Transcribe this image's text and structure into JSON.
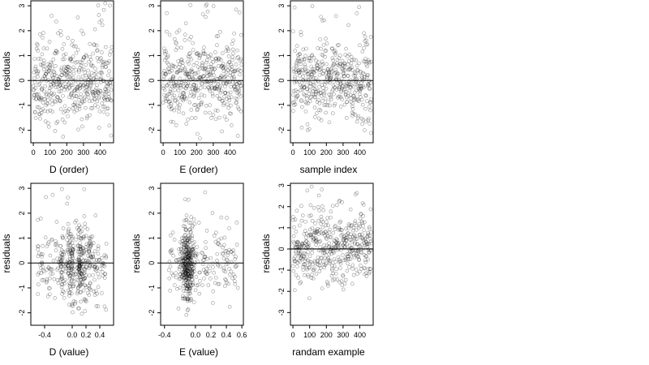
{
  "chart_data": [
    {
      "type": "scatter",
      "xlabel": "D (order)",
      "ylabel": "residuals",
      "xlim": [
        -15,
        480
      ],
      "ylim": [
        -2.5,
        3.2
      ],
      "xticks": [
        0,
        100,
        200,
        300,
        400
      ],
      "xtick_labels": [
        "0",
        "100",
        "200",
        "300",
        "400"
      ],
      "yticks": [
        -2,
        -1,
        0,
        1,
        2,
        3
      ],
      "ytick_labels": [
        "-2",
        "-1",
        "0",
        "1",
        "2",
        "3"
      ],
      "hline": 0,
      "x_dist": "index",
      "n": 470,
      "seed": 11
    },
    {
      "type": "scatter",
      "xlabel": "E (order)",
      "ylabel": "residuals",
      "xlim": [
        -15,
        480
      ],
      "ylim": [
        -2.5,
        3.2
      ],
      "xticks": [
        0,
        100,
        200,
        300,
        400
      ],
      "xtick_labels": [
        "0",
        "100",
        "200",
        "300",
        "400"
      ],
      "yticks": [
        -2,
        -1,
        0,
        1,
        2,
        3
      ],
      "ytick_labels": [
        "-2",
        "-1",
        "0",
        "1",
        "2",
        "3"
      ],
      "hline": 0,
      "x_dist": "index",
      "n": 470,
      "seed": 23
    },
    {
      "type": "scatter",
      "xlabel": "sample index",
      "ylabel": "residuals",
      "xlim": [
        -15,
        480
      ],
      "ylim": [
        -2.5,
        3.2
      ],
      "xticks": [
        0,
        100,
        200,
        300,
        400
      ],
      "xtick_labels": [
        "0",
        "100",
        "200",
        "300",
        "400"
      ],
      "yticks": [
        -2,
        -1,
        0,
        1,
        2,
        3
      ],
      "ytick_labels": [
        "-2",
        "-1",
        "0",
        "1",
        "2",
        "3"
      ],
      "hline": 0,
      "x_dist": "index",
      "n": 470,
      "seed": 37
    },
    {
      "type": "scatter",
      "xlabel": "D (value)",
      "ylabel": "residuals",
      "xlim": [
        -0.6,
        0.6
      ],
      "ylim": [
        -2.5,
        3.2
      ],
      "xticks": [
        -0.4,
        0,
        0.2,
        0.4
      ],
      "xtick_labels": [
        "-0.4",
        "0.0",
        "0.2",
        "0.4"
      ],
      "yticks": [
        -2,
        -1,
        0,
        1,
        2,
        3
      ],
      "ytick_labels": [
        "-2",
        "-1",
        "0",
        "1",
        "2",
        "3"
      ],
      "hline": 0,
      "x_dist": "D_value",
      "n": 470,
      "seed": 41
    },
    {
      "type": "scatter",
      "xlabel": "E (value)",
      "ylabel": "residuals",
      "xlim": [
        -0.45,
        0.62
      ],
      "ylim": [
        -2.5,
        3.2
      ],
      "xticks": [
        -0.4,
        0,
        0.2,
        0.4,
        0.6
      ],
      "xtick_labels": [
        "-0.4",
        "0.0",
        "0.2",
        "0.4",
        "0.6"
      ],
      "yticks": [
        -2,
        -1,
        0,
        1,
        2,
        3
      ],
      "ytick_labels": [
        "-2",
        "-1",
        "0",
        "1",
        "2",
        "3"
      ],
      "hline": 0,
      "x_dist": "E_value",
      "n": 470,
      "seed": 53
    },
    {
      "type": "scatter",
      "xlabel": "randam example",
      "ylabel": "residuals",
      "xlim": [
        -15,
        480
      ],
      "ylim": [
        -3.6,
        3.1
      ],
      "xticks": [
        0,
        100,
        200,
        300,
        400
      ],
      "xtick_labels": [
        "0",
        "100",
        "200",
        "300",
        "400"
      ],
      "yticks": [
        -3,
        -2,
        -1,
        0,
        1,
        2,
        3
      ],
      "ytick_labels": [
        "-3",
        "-2",
        "-1",
        "0",
        "1",
        "2",
        "3"
      ],
      "hline": 0,
      "x_dist": "index",
      "n": 470,
      "seed": 67
    }
  ],
  "style": {
    "point_color": "#000000",
    "point_opacity": 0.42,
    "line_color": "#000000",
    "frame_color": "#000000"
  }
}
